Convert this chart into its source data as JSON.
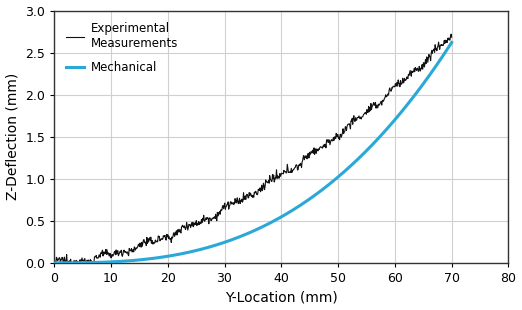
{
  "title": "",
  "xlabel": "Y-Location (mm)",
  "ylabel": "Z-Deflection (mm)",
  "xlim": [
    0,
    80
  ],
  "ylim": [
    0,
    3
  ],
  "xticks": [
    0,
    10,
    20,
    30,
    40,
    50,
    60,
    70,
    80
  ],
  "yticks": [
    0,
    0.5,
    1.0,
    1.5,
    2.0,
    2.5,
    3.0
  ],
  "mechanical_color": "#2aa8d8",
  "experimental_color": "#111111",
  "legend_exp": "Experimental\nMeasurements",
  "legend_mech": "Mechanical",
  "background_color": "#ffffff",
  "grid_color": "#d0d0d0",
  "mech_power": 2.8,
  "mech_end_y": 2.62,
  "exp_power": 1.7,
  "exp_end_y": 2.7,
  "noise_scale": 0.025,
  "n_exp_points": 700
}
